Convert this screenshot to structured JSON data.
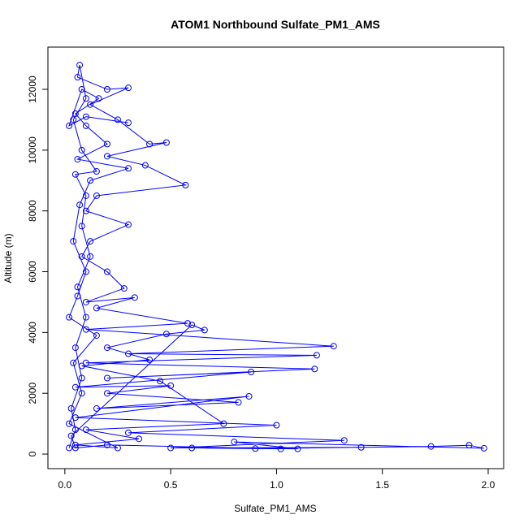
{
  "chart_data": {
    "type": "line",
    "title": "ATOM1 Northbound Sulfate_PM1_AMS",
    "x_label": "Sulfate_PM1_AMS",
    "y_label": "Altitude (m)",
    "color": "#0000ff",
    "points": true,
    "x": [
      0.02,
      0.05,
      0.03,
      0.08,
      0.05,
      0.1,
      0.06,
      0.12,
      0.08,
      0.1,
      0.05,
      0.15,
      0.08,
      0.04,
      0.1,
      0.07,
      0.06,
      0.2,
      0.3,
      0.12,
      0.25,
      0.4,
      0.48,
      0.2,
      0.38,
      0.57,
      0.15,
      0.1,
      0.3,
      0.12,
      0.08,
      0.2,
      0.28,
      0.1,
      0.33,
      0.15,
      0.58,
      0.1,
      1.27,
      0.3,
      1.19,
      0.1,
      1.18,
      0.2,
      0.88,
      0.05,
      0.5,
      0.2,
      0.82,
      0.15,
      0.87,
      0.05,
      1.0,
      0.3,
      1.32,
      0.5,
      1.4,
      0.9,
      1.73,
      1.91,
      1.98,
      0.8,
      1.1,
      0.6,
      1.02,
      0.2,
      0.05,
      0.03,
      0.6,
      0.66,
      0.48,
      0.2,
      0.4,
      0.08,
      0.45,
      0.75,
      0.1,
      0.35,
      0.05,
      0.25,
      0.02,
      0.08,
      0.04,
      0.15,
      0.02,
      0.06,
      0.1,
      0.04,
      0.07,
      0.12,
      0.3,
      0.06,
      0.2,
      0.1,
      0.05,
      0.16,
      0.08,
      0.02,
      0.1,
      0.3
    ],
    "y": [
      200,
      800,
      1500,
      2500,
      3500,
      4500,
      5500,
      6500,
      7500,
      8500,
      9200,
      9300,
      10000,
      11000,
      11700,
      12800,
      12400,
      12000,
      12050,
      11500,
      11000,
      10200,
      10250,
      9800,
      9500,
      8850,
      8500,
      8000,
      7550,
      7000,
      6500,
      6000,
      5450,
      5000,
      5150,
      4800,
      4300,
      4100,
      3550,
      3300,
      3250,
      3000,
      2800,
      2500,
      2700,
      2200,
      2250,
      2000,
      1700,
      1500,
      1900,
      1200,
      950,
      700,
      450,
      200,
      220,
      180,
      250,
      290,
      190,
      400,
      170,
      200,
      170,
      300,
      200,
      600,
      4250,
      4080,
      3950,
      3500,
      3100,
      2900,
      2400,
      1000,
      800,
      500,
      300,
      200,
      1000,
      2000,
      3000,
      3900,
      4500,
      5200,
      6000,
      7000,
      8200,
      9000,
      9400,
      9700,
      10200,
      10800,
      11200,
      11700,
      12000,
      10800,
      11100,
      10900
    ],
    "xlim": [
      -0.08,
      2.073
    ],
    "ylim": [
      -480,
      13390
    ],
    "xticks": [
      {
        "value": 0,
        "label": "0.0"
      },
      {
        "value": 0.5,
        "label": "0.5"
      },
      {
        "value": 1,
        "label": "1.0"
      },
      {
        "value": 1.5,
        "label": "1.5"
      },
      {
        "value": 2,
        "label": "2.0"
      }
    ],
    "yticks": [
      0,
      2000,
      4000,
      6000,
      8000,
      10000,
      12000
    ]
  }
}
